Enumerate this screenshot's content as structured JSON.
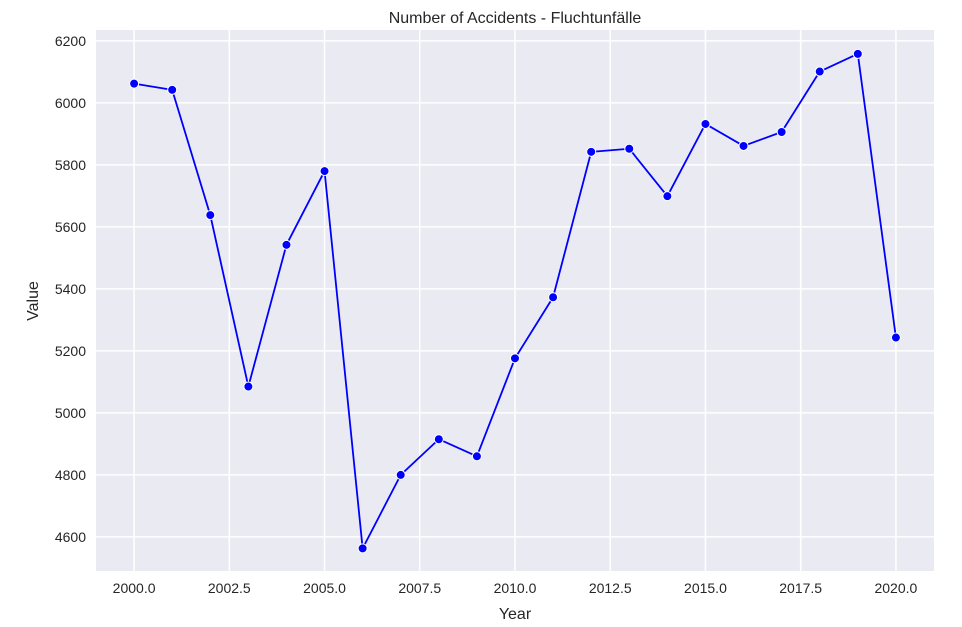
{
  "chart_data": {
    "type": "line",
    "title": "Number of Accidents - Fluchtunfälle",
    "xlabel": "Year",
    "ylabel": "Value",
    "xlim": [
      1999.0,
      2021.0
    ],
    "ylim": [
      4490,
      6235
    ],
    "xticks": [
      2000.0,
      2002.5,
      2005.0,
      2007.5,
      2010.0,
      2012.5,
      2015.0,
      2017.5,
      2020.0
    ],
    "xtick_labels": [
      "2000.0",
      "2002.5",
      "2005.0",
      "2007.5",
      "2010.0",
      "2012.5",
      "2015.0",
      "2017.5",
      "2020.0"
    ],
    "yticks": [
      4600,
      4800,
      5000,
      5200,
      5400,
      5600,
      5800,
      6000,
      6200
    ],
    "ytick_labels": [
      "4600",
      "4800",
      "5000",
      "5200",
      "5400",
      "5600",
      "5800",
      "6000",
      "6200"
    ],
    "grid": true,
    "background": "#EAEAF2",
    "series": [
      {
        "color": "#0000FF",
        "marker": "circle",
        "x": [
          2000,
          2001,
          2002,
          2003,
          2004,
          2005,
          2006,
          2007,
          2008,
          2009,
          2010,
          2011,
          2012,
          2013,
          2014,
          2015,
          2016,
          2017,
          2018,
          2019,
          2020
        ],
        "y": [
          6062,
          6042,
          5638,
          5085,
          5542,
          5780,
          4563,
          4800,
          4915,
          4860,
          5176,
          5373,
          5842,
          5852,
          5699,
          5932,
          5861,
          5906,
          6101,
          6158,
          5243
        ]
      }
    ]
  }
}
